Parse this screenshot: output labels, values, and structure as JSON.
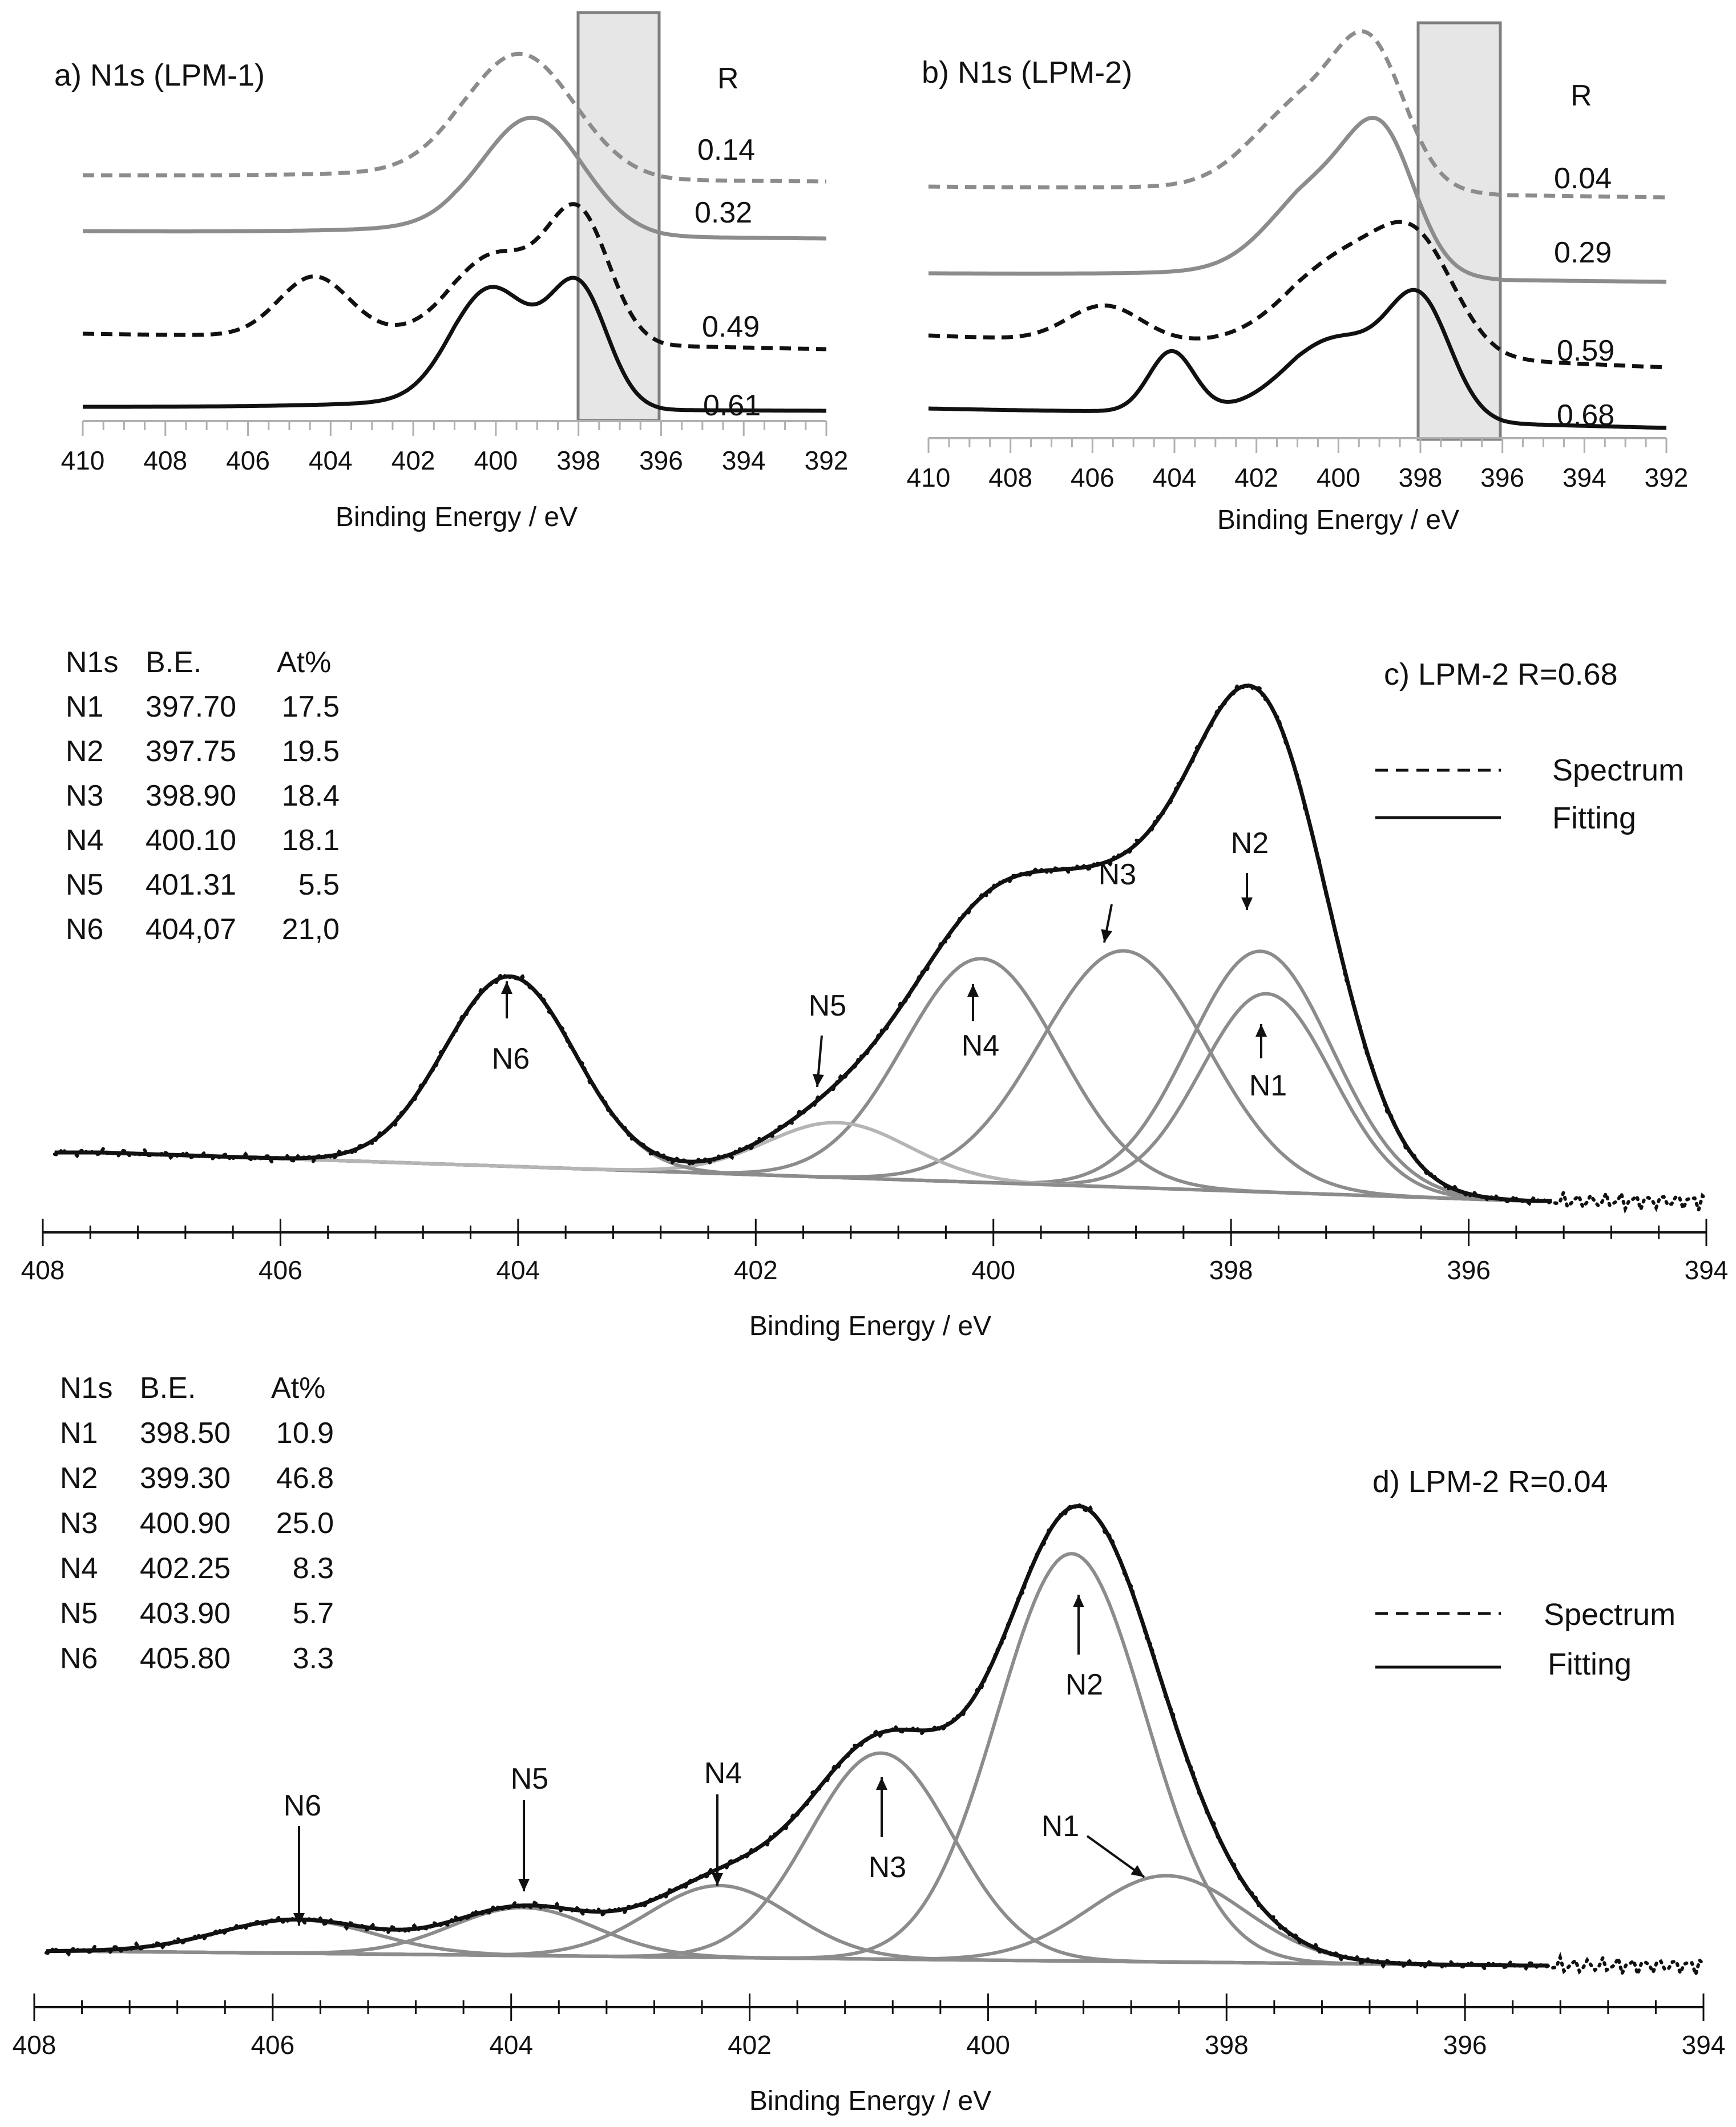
{
  "panels": [
    {
      "id": "a",
      "title": "a) N1s (LPM-1)",
      "xlabel": "Binding Energy / eV",
      "xlim": [
        410,
        392
      ],
      "ticks": [
        410,
        408,
        406,
        404,
        402,
        400,
        398,
        396,
        394,
        392
      ],
      "highlight": [
        398,
        396
      ],
      "r_header": "R",
      "traces": [
        {
          "r": "0.14",
          "style": "grey-dashed"
        },
        {
          "r": "0.32",
          "style": "grey-solid"
        },
        {
          "r": "0.49",
          "style": "black-dashed"
        },
        {
          "r": "0.61",
          "style": "black-solid"
        }
      ]
    },
    {
      "id": "b",
      "title": "b) N1s (LPM-2)",
      "xlabel": "Binding Energy / eV",
      "xlim": [
        410,
        392
      ],
      "ticks": [
        410,
        408,
        406,
        404,
        402,
        400,
        398,
        396,
        394,
        392
      ],
      "highlight": [
        398,
        396
      ],
      "r_header": "R",
      "traces": [
        {
          "r": "0.04",
          "style": "grey-dashed"
        },
        {
          "r": "0.29",
          "style": "grey-solid"
        },
        {
          "r": "0.59",
          "style": "black-dashed"
        },
        {
          "r": "0.68",
          "style": "black-solid"
        }
      ]
    },
    {
      "id": "c",
      "title": "c) LPM-2 R=0.68",
      "xlabel": "Binding Energy / eV",
      "xlim": [
        408,
        394
      ],
      "ticks": [
        408,
        406,
        404,
        402,
        400,
        398,
        396,
        394
      ],
      "legend": {
        "spectrum": "Spectrum",
        "fitting": "Fitting"
      },
      "table": {
        "header": [
          "N1s",
          "B.E.",
          "At%"
        ],
        "rows": [
          [
            "N1",
            "397.70",
            "17.5"
          ],
          [
            "N2",
            "397.75",
            "19.5"
          ],
          [
            "N3",
            "398.90",
            "18.4"
          ],
          [
            "N4",
            "400.10",
            "18.1"
          ],
          [
            "N5",
            "401.31",
            "5.5"
          ],
          [
            "N6",
            "404,07",
            "21,0"
          ]
        ]
      },
      "peaks": [
        {
          "name": "N1",
          "center": 397.7
        },
        {
          "name": "N2",
          "center": 397.75
        },
        {
          "name": "N3",
          "center": 398.9
        },
        {
          "name": "N4",
          "center": 400.1
        },
        {
          "name": "N5",
          "center": 401.31
        },
        {
          "name": "N6",
          "center": 404.07
        }
      ]
    },
    {
      "id": "d",
      "title": "d) LPM-2 R=0.04",
      "xlabel": "Binding Energy / eV",
      "xlim": [
        408,
        394
      ],
      "ticks": [
        408,
        406,
        404,
        402,
        400,
        398,
        396,
        394
      ],
      "legend": {
        "spectrum": "Spectrum",
        "fitting": "Fitting"
      },
      "table": {
        "header": [
          "N1s",
          "B.E.",
          "At%"
        ],
        "rows": [
          [
            "N1",
            "398.50",
            "10.9"
          ],
          [
            "N2",
            "399.30",
            "46.8"
          ],
          [
            "N3",
            "400.90",
            "25.0"
          ],
          [
            "N4",
            "402.25",
            "8.3"
          ],
          [
            "N5",
            "403.90",
            "5.7"
          ],
          [
            "N6",
            "405.80",
            "3.3"
          ]
        ]
      },
      "peaks": [
        {
          "name": "N1",
          "center": 398.5
        },
        {
          "name": "N2",
          "center": 399.3
        },
        {
          "name": "N3",
          "center": 400.9
        },
        {
          "name": "N4",
          "center": 402.25
        },
        {
          "name": "N5",
          "center": 403.9
        },
        {
          "name": "N6",
          "center": 405.8
        }
      ]
    }
  ],
  "chart_data": [
    {
      "type": "line",
      "title": "a) N1s (LPM-1)",
      "xlabel": "Binding Energy / eV",
      "xlim": [
        410,
        392
      ],
      "series": [
        {
          "name": "R = 0.14",
          "peaks": [
            {
              "center": 399.4,
              "height": 0.9,
              "width": 1.3
            }
          ]
        },
        {
          "name": "R = 0.32",
          "peaks": [
            {
              "center": 399.1,
              "height": 0.85,
              "width": 1.2
            }
          ]
        },
        {
          "name": "R = 0.49",
          "peaks": [
            {
              "center": 404.4,
              "height": 0.38,
              "width": 0.85
            },
            {
              "center": 400.0,
              "height": 0.5,
              "width": 1.0
            },
            {
              "center": 398.0,
              "height": 0.8,
              "width": 0.75
            }
          ]
        },
        {
          "name": "R = 0.61",
          "peaks": [
            {
              "center": 400.1,
              "height": 0.8,
              "width": 0.95
            },
            {
              "center": 398.0,
              "height": 0.83,
              "width": 0.7
            }
          ]
        }
      ]
    },
    {
      "type": "line",
      "title": "b) N1s (LPM-2)",
      "xlabel": "Binding Energy / eV",
      "xlim": [
        410,
        392
      ],
      "series": [
        {
          "name": "R = 0.04",
          "peaks": [
            {
              "center": 400.9,
              "height": 0.55,
              "width": 1.2
            },
            {
              "center": 399.2,
              "height": 0.9,
              "width": 0.85
            }
          ]
        },
        {
          "name": "R = 0.29",
          "peaks": [
            {
              "center": 400.4,
              "height": 0.55,
              "width": 1.2
            },
            {
              "center": 398.9,
              "height": 0.75,
              "width": 0.8
            }
          ]
        },
        {
          "name": "R = 0.59",
          "peaks": [
            {
              "center": 405.7,
              "height": 0.25,
              "width": 0.9
            },
            {
              "center": 399.7,
              "height": 0.62,
              "width": 1.4
            },
            {
              "center": 398.0,
              "height": 0.55,
              "width": 0.9
            }
          ]
        },
        {
          "name": "R = 0.68",
          "peaks": [
            {
              "center": 404.07,
              "height": 0.42,
              "width": 0.55
            },
            {
              "center": 400.0,
              "height": 0.5,
              "width": 1.2
            },
            {
              "center": 398.0,
              "height": 0.75,
              "width": 0.75
            }
          ]
        }
      ]
    },
    {
      "type": "line",
      "title": "c) LPM-2 R=0.68",
      "xlabel": "Binding Energy / eV",
      "xlim": [
        408,
        394
      ],
      "series": [
        {
          "name": "N1",
          "center": 397.7,
          "height": 0.47,
          "width": 0.55
        },
        {
          "name": "N2",
          "center": 397.75,
          "height": 0.57,
          "width": 0.6
        },
        {
          "name": "N3",
          "center": 398.9,
          "height": 0.56,
          "width": 0.7
        },
        {
          "name": "N4",
          "center": 400.1,
          "height": 0.53,
          "width": 0.65
        },
        {
          "name": "N5",
          "center": 401.31,
          "height": 0.13,
          "width": 0.6
        },
        {
          "name": "N6",
          "center": 404.07,
          "height": 0.45,
          "width": 0.55
        }
      ]
    },
    {
      "type": "line",
      "title": "d) LPM-2 R=0.04",
      "xlabel": "Binding Energy / eV",
      "xlim": [
        408,
        394
      ],
      "series": [
        {
          "name": "N1",
          "center": 398.5,
          "height": 0.18,
          "width": 0.65
        },
        {
          "name": "N2",
          "center": 399.3,
          "height": 0.85,
          "width": 0.62
        },
        {
          "name": "N3",
          "center": 400.9,
          "height": 0.43,
          "width": 0.6
        },
        {
          "name": "N4",
          "center": 402.25,
          "height": 0.15,
          "width": 0.6
        },
        {
          "name": "N5",
          "center": 403.9,
          "height": 0.1,
          "width": 0.6
        },
        {
          "name": "N6",
          "center": 405.8,
          "height": 0.07,
          "width": 0.65
        }
      ]
    }
  ]
}
